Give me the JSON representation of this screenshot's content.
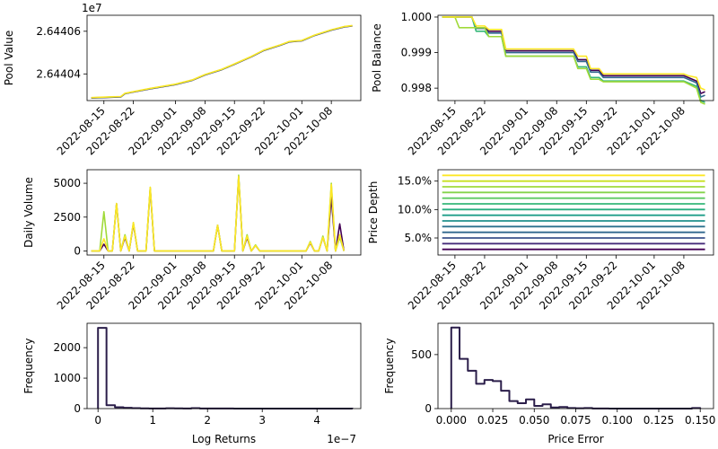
{
  "chart_data": [
    {
      "type": "line",
      "ylabel": "Pool Value",
      "y_offset_label": "1e7",
      "ylim": [
        26440275,
        26440675
      ],
      "yticks": [
        26440400,
        26440600
      ],
      "ytick_labels": [
        "2.64404",
        "2.64406"
      ],
      "xlim": [
        "2022-08-11",
        "2022-10-15"
      ],
      "xticks": [
        "2022-08-15",
        "2022-08-22",
        "2022-09-01",
        "2022-09-08",
        "2022-09-15",
        "2022-09-22",
        "2022-10-01",
        "2022-10-08"
      ],
      "series": [
        {
          "color": "#440154",
          "x": [
            "2022-08-12",
            "2022-08-19",
            "2022-08-20",
            "2022-08-22",
            "2022-08-26",
            "2022-09-01",
            "2022-09-05",
            "2022-09-08",
            "2022-09-12",
            "2022-09-15",
            "2022-09-19",
            "2022-09-22",
            "2022-09-26",
            "2022-09-28",
            "2022-10-01",
            "2022-10-04",
            "2022-10-08",
            "2022-10-11",
            "2022-10-13"
          ],
          "y": [
            26440287,
            26440292,
            26440307,
            26440315,
            26440330,
            26440350,
            26440370,
            26440395,
            26440420,
            26440445,
            26440480,
            26440510,
            26440535,
            26440550,
            26440555,
            26440580,
            26440605,
            26440620,
            26440625
          ]
        },
        {
          "color": "#21918c",
          "x": [
            "2022-08-12",
            "2022-08-19",
            "2022-08-20",
            "2022-08-22",
            "2022-08-26",
            "2022-09-01",
            "2022-09-05",
            "2022-09-08",
            "2022-09-12",
            "2022-09-15",
            "2022-09-19",
            "2022-09-22",
            "2022-09-26",
            "2022-09-28",
            "2022-10-01",
            "2022-10-04",
            "2022-10-08",
            "2022-10-11",
            "2022-10-13"
          ],
          "y": [
            26440288,
            26440293,
            26440308,
            26440316,
            26440331,
            26440351,
            26440371,
            26440396,
            26440421,
            26440446,
            26440481,
            26440511,
            26440536,
            26440551,
            26440556,
            26440581,
            26440606,
            26440621,
            26440626
          ]
        },
        {
          "color": "#fde725",
          "x": [
            "2022-08-12",
            "2022-08-19",
            "2022-08-20",
            "2022-08-22",
            "2022-08-26",
            "2022-09-01",
            "2022-09-05",
            "2022-09-08",
            "2022-09-12",
            "2022-09-15",
            "2022-09-19",
            "2022-09-22",
            "2022-09-26",
            "2022-09-28",
            "2022-10-01",
            "2022-10-04",
            "2022-10-08",
            "2022-10-11",
            "2022-10-13"
          ],
          "y": [
            26440289,
            26440294,
            26440309,
            26440317,
            26440332,
            26440352,
            26440372,
            26440397,
            26440422,
            26440447,
            26440482,
            26440512,
            26440537,
            26440552,
            26440557,
            26440582,
            26440607,
            26440622,
            26440627
          ]
        }
      ]
    },
    {
      "type": "line",
      "ylabel": "Pool Balance",
      "ylim": [
        0.99765,
        1.00005
      ],
      "yticks": [
        0.998,
        0.999,
        1.0
      ],
      "ytick_labels": [
        "0.998",
        "0.999",
        "1.000"
      ],
      "xlim": [
        "2022-08-11",
        "2022-10-15"
      ],
      "xticks": [
        "2022-08-15",
        "2022-08-22",
        "2022-09-01",
        "2022-09-08",
        "2022-09-15",
        "2022-09-22",
        "2022-10-01",
        "2022-10-08"
      ],
      "series": [
        {
          "color": "#440154",
          "x": [
            "2022-08-12",
            "2022-08-19",
            "2022-08-20",
            "2022-08-22",
            "2022-08-23",
            "2022-08-26",
            "2022-08-27",
            "2022-09-12",
            "2022-09-13",
            "2022-09-15",
            "2022-09-16",
            "2022-09-18",
            "2022-09-19",
            "2022-10-08",
            "2022-10-09",
            "2022-10-11",
            "2022-10-12",
            "2022-10-13"
          ],
          "y": [
            1.0,
            1.0,
            0.9997,
            0.9997,
            0.9996,
            0.9996,
            0.99905,
            0.99905,
            0.9988,
            0.9988,
            0.9985,
            0.9985,
            0.99835,
            0.99835,
            0.9983,
            0.9982,
            0.99785,
            0.9979
          ]
        },
        {
          "color": "#31688e",
          "x": [
            "2022-08-12",
            "2022-08-19",
            "2022-08-20",
            "2022-08-22",
            "2022-08-23",
            "2022-08-26",
            "2022-08-27",
            "2022-09-12",
            "2022-09-13",
            "2022-09-15",
            "2022-09-16",
            "2022-09-18",
            "2022-09-19",
            "2022-10-08",
            "2022-10-09",
            "2022-10-11",
            "2022-10-12",
            "2022-10-13"
          ],
          "y": [
            1.0,
            1.0,
            0.99968,
            0.99968,
            0.99955,
            0.99955,
            0.999,
            0.999,
            0.99875,
            0.99875,
            0.99845,
            0.99845,
            0.9983,
            0.9983,
            0.99825,
            0.99815,
            0.99775,
            0.9978
          ]
        },
        {
          "color": "#35b779",
          "x": [
            "2022-08-12",
            "2022-08-19",
            "2022-08-20",
            "2022-08-22",
            "2022-08-23",
            "2022-08-26",
            "2022-08-27",
            "2022-09-12",
            "2022-09-13",
            "2022-09-15",
            "2022-09-16",
            "2022-09-18",
            "2022-09-19",
            "2022-10-08",
            "2022-10-09",
            "2022-10-11",
            "2022-10-12",
            "2022-10-13"
          ],
          "y": [
            1.0,
            1.0,
            0.9996,
            0.9996,
            0.99945,
            0.99945,
            0.9989,
            0.9989,
            0.9986,
            0.9986,
            0.9983,
            0.9983,
            0.9982,
            0.9982,
            0.99815,
            0.99805,
            0.99765,
            0.9976
          ]
        },
        {
          "color": "#a0da39",
          "x": [
            "2022-08-12",
            "2022-08-15",
            "2022-08-16",
            "2022-08-22",
            "2022-08-23",
            "2022-08-26",
            "2022-08-27",
            "2022-09-12",
            "2022-09-13",
            "2022-09-15",
            "2022-09-16",
            "2022-09-18",
            "2022-09-19",
            "2022-10-08",
            "2022-10-09",
            "2022-10-11",
            "2022-10-12",
            "2022-10-13"
          ],
          "y": [
            1.0,
            1.0,
            0.9997,
            0.9997,
            0.99945,
            0.99945,
            0.9989,
            0.9989,
            0.99855,
            0.99855,
            0.99825,
            0.99825,
            0.99818,
            0.99818,
            0.99812,
            0.998,
            0.9976,
            0.99755
          ]
        },
        {
          "color": "#fde725",
          "x": [
            "2022-08-12",
            "2022-08-19",
            "2022-08-20",
            "2022-08-22",
            "2022-08-23",
            "2022-08-26",
            "2022-08-27",
            "2022-09-12",
            "2022-09-13",
            "2022-09-15",
            "2022-09-16",
            "2022-09-18",
            "2022-09-19",
            "2022-10-08",
            "2022-10-09",
            "2022-10-11",
            "2022-10-12",
            "2022-10-13"
          ],
          "y": [
            1.0,
            1.0,
            0.99975,
            0.99975,
            0.99965,
            0.99965,
            0.9991,
            0.9991,
            0.9989,
            0.9989,
            0.99855,
            0.99855,
            0.9984,
            0.9984,
            0.99835,
            0.9983,
            0.998,
            0.99795
          ]
        }
      ]
    },
    {
      "type": "line",
      "ylabel": "Daily Volume",
      "ylim": [
        -300,
        6000
      ],
      "yticks": [
        0,
        2500,
        5000
      ],
      "ytick_labels": [
        "0",
        "2500",
        "5000"
      ],
      "xlim": [
        "2022-08-11",
        "2022-10-15"
      ],
      "xticks": [
        "2022-08-15",
        "2022-08-22",
        "2022-09-01",
        "2022-09-08",
        "2022-09-15",
        "2022-09-22",
        "2022-10-01",
        "2022-10-08"
      ],
      "series": [
        {
          "color": "#440154",
          "x": [
            "2022-08-12",
            "2022-08-13",
            "2022-08-14",
            "2022-08-15",
            "2022-08-16",
            "2022-08-17",
            "2022-08-18",
            "2022-08-19",
            "2022-08-20",
            "2022-08-21",
            "2022-08-22",
            "2022-08-23",
            "2022-08-24",
            "2022-08-25",
            "2022-08-26",
            "2022-08-27",
            "2022-09-10",
            "2022-09-11",
            "2022-09-12",
            "2022-09-15",
            "2022-09-16",
            "2022-09-17",
            "2022-09-18",
            "2022-09-19",
            "2022-09-20",
            "2022-09-21",
            "2022-10-02",
            "2022-10-03",
            "2022-10-04",
            "2022-10-05",
            "2022-10-06",
            "2022-10-07",
            "2022-10-08",
            "2022-10-09",
            "2022-10-10",
            "2022-10-11"
          ],
          "y": [
            0,
            0,
            0,
            500,
            0,
            0,
            3500,
            0,
            1000,
            0,
            2000,
            0,
            0,
            0,
            4600,
            0,
            0,
            1900,
            0,
            0,
            5500,
            0,
            1000,
            0,
            400,
            0,
            0,
            600,
            0,
            0,
            1000,
            0,
            4000,
            0,
            2000,
            0
          ]
        },
        {
          "color": "#a0da39",
          "x": [
            "2022-08-12",
            "2022-08-13",
            "2022-08-14",
            "2022-08-15",
            "2022-08-16",
            "2022-08-17",
            "2022-08-18",
            "2022-08-19",
            "2022-08-20",
            "2022-08-21",
            "2022-08-22",
            "2022-08-23",
            "2022-08-24",
            "2022-08-25",
            "2022-08-26",
            "2022-08-27",
            "2022-09-10",
            "2022-09-11",
            "2022-09-12",
            "2022-09-15",
            "2022-09-16",
            "2022-09-17",
            "2022-09-18",
            "2022-09-19",
            "2022-09-20",
            "2022-09-21",
            "2022-10-02",
            "2022-10-03",
            "2022-10-04",
            "2022-10-05",
            "2022-10-06",
            "2022-10-07",
            "2022-10-08",
            "2022-10-09",
            "2022-10-10",
            "2022-10-11"
          ],
          "y": [
            0,
            0,
            0,
            2900,
            0,
            0,
            3500,
            0,
            1200,
            0,
            2100,
            0,
            0,
            0,
            4700,
            0,
            0,
            1900,
            0,
            0,
            5600,
            0,
            1200,
            0,
            450,
            0,
            0,
            700,
            0,
            0,
            1100,
            0,
            5000,
            0,
            1000,
            0
          ]
        },
        {
          "color": "#fde725",
          "x": [
            "2022-08-12",
            "2022-08-13",
            "2022-08-14",
            "2022-08-15",
            "2022-08-16",
            "2022-08-17",
            "2022-08-18",
            "2022-08-19",
            "2022-08-20",
            "2022-08-21",
            "2022-08-22",
            "2022-08-23",
            "2022-08-24",
            "2022-08-25",
            "2022-08-26",
            "2022-08-27",
            "2022-09-10",
            "2022-09-11",
            "2022-09-12",
            "2022-09-15",
            "2022-09-16",
            "2022-09-17",
            "2022-09-18",
            "2022-09-19",
            "2022-09-20",
            "2022-09-21",
            "2022-10-02",
            "2022-10-03",
            "2022-10-04",
            "2022-10-05",
            "2022-10-06",
            "2022-10-07",
            "2022-10-08",
            "2022-10-09",
            "2022-10-10",
            "2022-10-11"
          ],
          "y": [
            0,
            0,
            0,
            900,
            0,
            0,
            3500,
            0,
            1100,
            0,
            2100,
            0,
            0,
            0,
            4700,
            0,
            0,
            1900,
            0,
            0,
            5500,
            0,
            1100,
            0,
            400,
            0,
            0,
            650,
            0,
            0,
            1000,
            0,
            4900,
            0,
            1200,
            0
          ]
        }
      ]
    },
    {
      "type": "line",
      "ylabel": "Price Depth",
      "ylim": [
        0.02,
        0.17
      ],
      "yticks": [
        0.05,
        0.1,
        0.15
      ],
      "ytick_labels": [
        "5.0%",
        "10.0%",
        "15.0%"
      ],
      "xlim": [
        "2022-08-11",
        "2022-10-15"
      ],
      "xticks": [
        "2022-08-15",
        "2022-08-22",
        "2022-09-01",
        "2022-09-08",
        "2022-09-15",
        "2022-09-22",
        "2022-10-01",
        "2022-10-08"
      ],
      "x_span": [
        "2022-08-12",
        "2022-10-13"
      ],
      "levels": [
        0.03,
        0.04,
        0.05,
        0.06,
        0.07,
        0.08,
        0.09,
        0.1,
        0.11,
        0.12,
        0.13,
        0.14,
        0.15,
        0.16
      ],
      "colors": [
        "#440154",
        "#472d7b",
        "#3b528b",
        "#31688e",
        "#2c728e",
        "#21918c",
        "#1f9e89",
        "#28ae80",
        "#35b779",
        "#5ec962",
        "#84d44b",
        "#a0da39",
        "#c8e020",
        "#fde725"
      ]
    },
    {
      "type": "histogram",
      "ylabel": "Frequency",
      "xlabel": "Log Returns",
      "x_offset_label": "1e−7",
      "xlim": [
        -0.2,
        4.8
      ],
      "ylim": [
        0,
        2800
      ],
      "xticks": [
        0,
        1,
        2,
        3,
        4
      ],
      "xtick_labels": [
        "0",
        "1",
        "2",
        "3",
        "4"
      ],
      "yticks": [
        0,
        1000,
        2000
      ],
      "ytick_labels": [
        "0",
        "1000",
        "2000"
      ],
      "color": "#2b1e4a",
      "bin_edges": [
        0.0,
        0.155,
        0.31,
        0.465,
        0.62,
        0.775,
        0.93,
        1.085,
        1.24,
        1.395,
        1.55,
        1.705,
        1.86,
        2.015,
        2.17,
        2.325,
        2.48,
        2.635,
        2.79,
        2.945,
        3.1,
        3.255,
        3.41,
        3.565,
        3.72,
        3.875,
        4.03,
        4.185,
        4.34,
        4.495,
        4.65
      ],
      "counts": [
        2650,
        110,
        45,
        25,
        15,
        8,
        5,
        5,
        10,
        8,
        5,
        15,
        5,
        3,
        2,
        2,
        1,
        1,
        1,
        1,
        1,
        1,
        1,
        1,
        1,
        1,
        1,
        1,
        1,
        1
      ]
    },
    {
      "type": "histogram",
      "ylabel": "Frequency",
      "xlabel": "Price Error",
      "xlim": [
        -0.008,
        0.158
      ],
      "ylim": [
        0,
        790
      ],
      "xticks": [
        0.0,
        0.025,
        0.05,
        0.075,
        0.1,
        0.125,
        0.15
      ],
      "xtick_labels": [
        "0.000",
        "0.025",
        "0.050",
        "0.075",
        "0.100",
        "0.125",
        "0.150"
      ],
      "yticks": [
        0,
        500
      ],
      "ytick_labels": [
        "0",
        "500"
      ],
      "color": "#2b1e4a",
      "bin_edges": [
        0.0,
        0.005,
        0.01,
        0.015,
        0.02,
        0.025,
        0.03,
        0.035,
        0.04,
        0.045,
        0.05,
        0.055,
        0.06,
        0.065,
        0.07,
        0.075,
        0.08,
        0.085,
        0.09,
        0.095,
        0.1,
        0.105,
        0.11,
        0.115,
        0.12,
        0.125,
        0.13,
        0.135,
        0.14,
        0.145,
        0.15
      ],
      "counts": [
        750,
        460,
        350,
        230,
        265,
        255,
        165,
        70,
        50,
        85,
        25,
        40,
        10,
        15,
        5,
        3,
        5,
        1,
        1,
        0,
        0,
        0,
        0,
        0,
        0,
        0,
        0,
        0,
        0,
        5
      ]
    }
  ]
}
